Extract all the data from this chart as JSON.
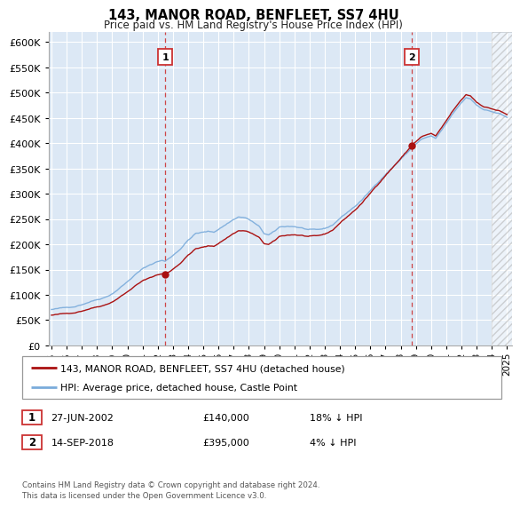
{
  "title": "143, MANOR ROAD, BENFLEET, SS7 4HU",
  "subtitle": "Price paid vs. HM Land Registry's House Price Index (HPI)",
  "legend_line1": "143, MANOR ROAD, BENFLEET, SS7 4HU (detached house)",
  "legend_line2": "HPI: Average price, detached house, Castle Point",
  "annotation1_label": "1",
  "annotation1_date": "27-JUN-2002",
  "annotation1_price": "£140,000",
  "annotation1_hpi": "18% ↓ HPI",
  "annotation2_label": "2",
  "annotation2_date": "14-SEP-2018",
  "annotation2_price": "£395,000",
  "annotation2_hpi": "4% ↓ HPI",
  "footnote": "Contains HM Land Registry data © Crown copyright and database right 2024.\nThis data is licensed under the Open Government Licence v3.0.",
  "ylim": [
    0,
    620000
  ],
  "yticks": [
    0,
    50000,
    100000,
    150000,
    200000,
    250000,
    300000,
    350000,
    400000,
    450000,
    500000,
    550000,
    600000
  ],
  "hpi_color": "#7aabdb",
  "price_color": "#aa1111",
  "vline_color": "#cc3333",
  "bg_plot": "#dce8f5",
  "bg_fig": "#ffffff",
  "grid_color": "#ffffff",
  "sale1_year": 2002.49,
  "sale1_price": 140000,
  "sale2_year": 2018.71,
  "sale2_price": 395000,
  "hatch_start": 2024.0,
  "data_end": 2025.0,
  "xlim_start": 1995.0,
  "xlim_end": 2025.3
}
